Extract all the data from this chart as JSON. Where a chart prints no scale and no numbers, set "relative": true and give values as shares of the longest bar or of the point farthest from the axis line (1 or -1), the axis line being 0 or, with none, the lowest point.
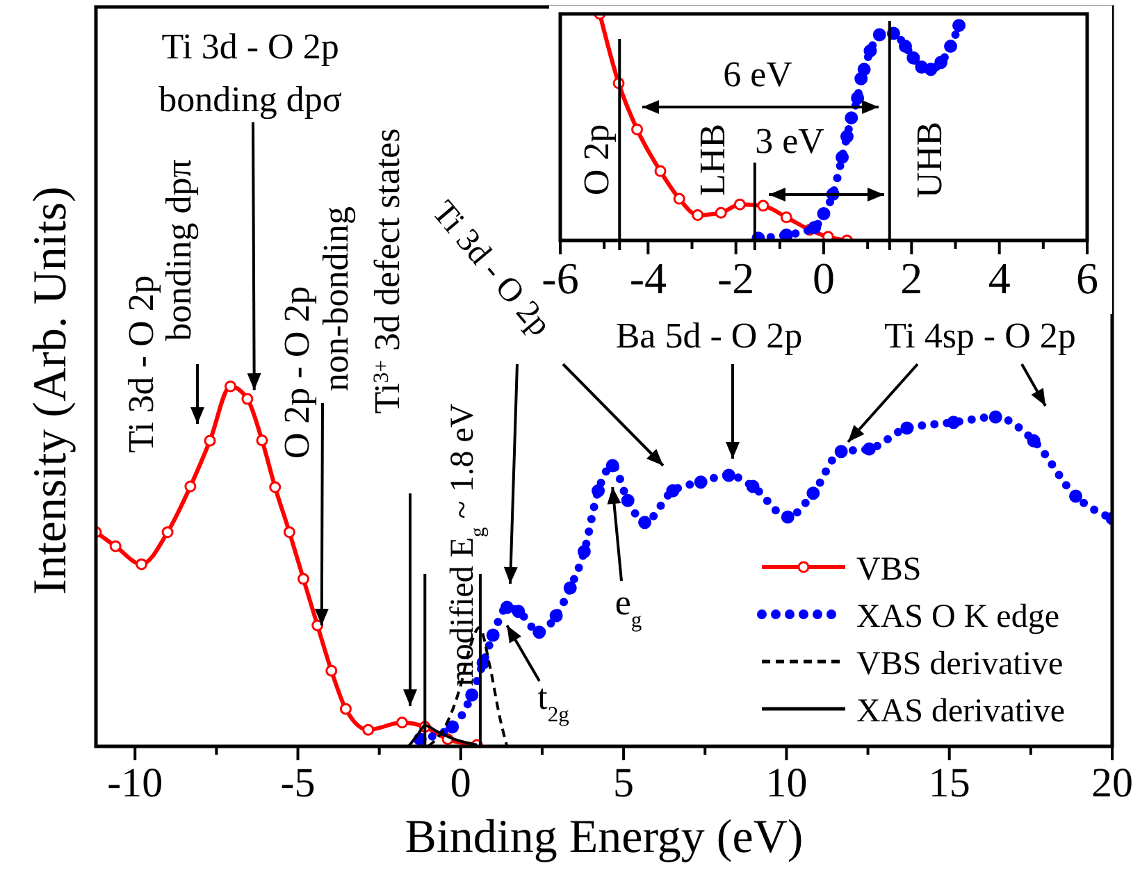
{
  "chart_data": [
    {
      "type": "line",
      "xlabel": "Binding Energy (eV)",
      "ylabel": "Intensity (Arb. Units)",
      "relative": true,
      "xlim": [
        -11.2,
        20
      ],
      "xticks": [
        -10,
        {
          "value": -7.5,
          "label": null
        },
        -5,
        {
          "value": -2.5,
          "label": null
        },
        0,
        {
          "value": 2.5,
          "label": null
        },
        5,
        {
          "value": 7.5,
          "label": null
        },
        10,
        {
          "value": 12.5,
          "label": null
        },
        15,
        {
          "value": 17.5,
          "label": null
        },
        20
      ],
      "tick_labels": "x",
      "legend": "bottom right",
      "series": [
        {
          "name": "VBS",
          "color": "#ff0000",
          "marker": "circle",
          "line_style": "solid",
          "x": [
            -11.2,
            -10.6,
            -9.8,
            -9.0,
            -8.3,
            -7.7,
            -7.07,
            -6.55,
            -6.1,
            -5.7,
            -5.26,
            -4.83,
            -4.4,
            -3.97,
            -3.53,
            -2.84,
            -1.8,
            -1.1,
            -0.4,
            0.5
          ],
          "values": [
            0.595,
            0.556,
            0.506,
            0.595,
            0.722,
            0.849,
            1.0,
            0.965,
            0.85,
            0.72,
            0.595,
            0.465,
            0.336,
            0.21,
            0.104,
            0.046,
            0.066,
            0.054,
            0.02,
            0.004
          ]
        },
        {
          "name": "XAS O K edge",
          "color": "#0000ff",
          "marker": "circle",
          "line_style": "dotted",
          "x": [
            -1.25,
            -0.26,
            0.34,
            0.69,
            0.99,
            1.42,
            1.77,
            2.41,
            2.93,
            3.36,
            3.79,
            4.22,
            4.66,
            5.13,
            5.65,
            6.51,
            7.37,
            8.23,
            8.97,
            10.04,
            10.82,
            11.68,
            12.54,
            13.7,
            15.13,
            16.42,
            17.59,
            18.88,
            20.0
          ],
          "values": [
            0.02,
            0.054,
            0.143,
            0.232,
            0.309,
            0.386,
            0.375,
            0.317,
            0.363,
            0.44,
            0.541,
            0.71,
            0.78,
            0.683,
            0.622,
            0.71,
            0.734,
            0.753,
            0.722,
            0.637,
            0.703,
            0.819,
            0.826,
            0.884,
            0.9,
            0.915,
            0.849,
            0.695,
            0.633
          ]
        },
        {
          "name": "VBS derivative",
          "color": "#000000",
          "marker": "none",
          "line_style": "dashed",
          "x": [
            -1.0,
            -0.45,
            0.0,
            0.3,
            0.57,
            0.9,
            1.2,
            1.42
          ],
          "values": [
            0.0,
            0.06,
            0.17,
            0.28,
            0.33,
            0.22,
            0.08,
            0.0
          ]
        },
        {
          "name": "XAS derivative",
          "color": "#000000",
          "marker": "none",
          "line_style": "solid",
          "x": [
            -1.6,
            -1.3,
            -1.1,
            -0.7,
            -0.2,
            0.5
          ],
          "values": [
            0.0,
            0.035,
            0.058,
            0.04,
            0.02,
            0.004
          ]
        }
      ],
      "ref_lines": [
        {
          "axis": "x",
          "value": -1.1,
          "label": null,
          "color": "#000000"
        },
        {
          "axis": "x",
          "value": 0.6,
          "label": null,
          "color": "#000000"
        }
      ],
      "annotations": [
        "Ti 3d - O 2p\nbonding dpπ",
        {
          "text": "Ti 3d - O 2p\nbonding dpσ",
          "x": -6.34,
          "y": 0.99
        },
        {
          "text": "O 2p - O 2p\nnon-bonding",
          "x": -4.27,
          "y": 0.336
        },
        "Ti$^{3+}$ 3d defect states",
        "modified E$_{g}$ ~ 1.8 eV",
        "Ti 3d - O 2p",
        "Ba 5d - O 2p",
        "Ti 4sp - O 2p",
        {
          "text": "e$_{g}$",
          "x": 4.66,
          "y": 0.72
        },
        {
          "text": "t$_{2g}$",
          "x": 1.42,
          "y": 0.336
        }
      ]
    },
    {
      "type": "line",
      "relative": true,
      "xlim": [
        -6,
        6
      ],
      "xticks": [
        -6,
        {
          "value": -5,
          "label": null
        },
        -4,
        {
          "value": -3,
          "label": null
        },
        -2,
        {
          "value": -1,
          "label": null
        },
        0,
        {
          "value": 1,
          "label": null
        },
        2,
        {
          "value": 3,
          "label": null
        },
        4,
        {
          "value": 5,
          "label": null
        },
        6
      ],
      "tick_labels": "x",
      "series": [
        {
          "color": "#ff0000",
          "marker": "circle",
          "line_style": "solid",
          "x": [
            -5.1,
            -4.67,
            -4.25,
            -3.72,
            -3.29,
            -2.87,
            -2.34,
            -1.91,
            -1.38,
            -0.85,
            -0.32,
            0.1,
            0.53
          ],
          "values": [
            1.0,
            0.694,
            0.49,
            0.306,
            0.184,
            0.112,
            0.122,
            0.159,
            0.153,
            0.102,
            0.047,
            0.016,
            0.0
          ]
        },
        {
          "color": "#0000ff",
          "marker": "circle",
          "line_style": "dotted",
          "x": [
            -1.49,
            -0.85,
            -0.21,
            0.0,
            0.21,
            0.42,
            0.53,
            0.63,
            0.77,
            0.85,
            0.92,
            1.06,
            1.27,
            1.59,
            1.86,
            2.04,
            2.23,
            2.44,
            2.67,
            2.89,
            3.08
          ],
          "values": [
            0.01,
            0.024,
            0.057,
            0.118,
            0.204,
            0.367,
            0.459,
            0.541,
            0.629,
            0.714,
            0.755,
            0.837,
            0.908,
            0.914,
            0.857,
            0.806,
            0.765,
            0.755,
            0.786,
            0.857,
            0.949
          ]
        }
      ],
      "ref_lines": [
        {
          "axis": "x",
          "value": -4.65,
          "label": "O 2p",
          "color": "#000000"
        },
        {
          "axis": "x",
          "value": -1.57,
          "label": "LHB",
          "color": "#000000"
        },
        {
          "axis": "x",
          "value": 1.5,
          "label": "UHB",
          "color": "#000000"
        }
      ],
      "annotations": [
        "6 eV",
        "3 eV"
      ]
    }
  ]
}
